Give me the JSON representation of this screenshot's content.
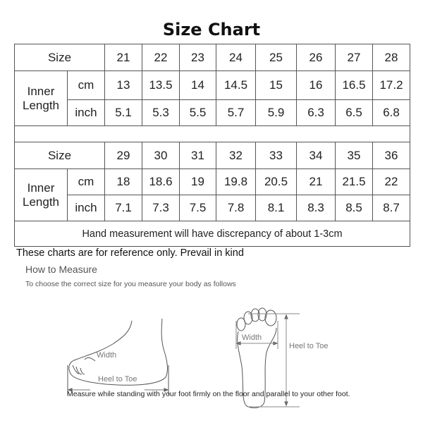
{
  "title": "Size Chart",
  "labels": {
    "size": "Size",
    "inner": "Inner",
    "length": "Length",
    "cm": "cm",
    "inch": "inch"
  },
  "table1": {
    "sizes": [
      "21",
      "22",
      "23",
      "24",
      "25",
      "26",
      "27",
      "28"
    ],
    "cm": [
      "13",
      "13.5",
      "14",
      "14.5",
      "15",
      "16",
      "16.5",
      "17.2"
    ],
    "inch": [
      "5.1",
      "5.3",
      "5.5",
      "5.7",
      "5.9",
      "6.3",
      "6.5",
      "6.8"
    ]
  },
  "table2": {
    "sizes": [
      "29",
      "30",
      "31",
      "32",
      "33",
      "34",
      "35",
      "36"
    ],
    "cm": [
      "18",
      "18.6",
      "19",
      "19.8",
      "20.5",
      "21",
      "21.5",
      "22"
    ],
    "inch": [
      "7.1",
      "7.3",
      "7.5",
      "7.8",
      "8.1",
      "8.3",
      "8.5",
      "8.7"
    ]
  },
  "note": "Hand measurement will have discrepancy of about 1-3cm",
  "reference": "These charts are for reference only. Prevail in kind",
  "how_to": {
    "heading": "How to Measure",
    "subheading": "To choose the correct size for you measure your body as follows",
    "width_label": "Width",
    "heel_to_toe_label": "Heel to Toe",
    "instruction": "Measure while standing with your foot firmly on the floor and parallel to your other foot."
  }
}
